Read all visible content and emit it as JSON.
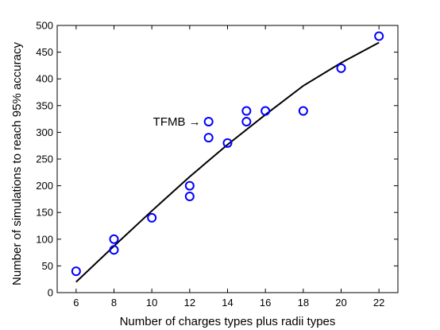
{
  "chart_data": {
    "type": "scatter",
    "xlabel": "Number of charges types plus radii types",
    "ylabel": "Number of simulations to reach 95% accuracy",
    "xlim": [
      5,
      23
    ],
    "ylim": [
      0,
      500
    ],
    "x_ticks": [
      6,
      8,
      10,
      12,
      14,
      16,
      18,
      20,
      22
    ],
    "y_ticks": [
      0,
      50,
      100,
      150,
      200,
      250,
      300,
      350,
      400,
      450,
      500
    ],
    "grid": false,
    "legend": "none",
    "series": [
      {
        "type": "scatter",
        "marker": "open-circle",
        "color": "#0000ff",
        "points": [
          {
            "x": 6,
            "y": 40
          },
          {
            "x": 8,
            "y": 100
          },
          {
            "x": 8,
            "y": 80
          },
          {
            "x": 10,
            "y": 140
          },
          {
            "x": 12,
            "y": 200
          },
          {
            "x": 12,
            "y": 180
          },
          {
            "x": 13,
            "y": 320
          },
          {
            "x": 13,
            "y": 290
          },
          {
            "x": 14,
            "y": 280
          },
          {
            "x": 15,
            "y": 340
          },
          {
            "x": 15,
            "y": 320
          },
          {
            "x": 16,
            "y": 340
          },
          {
            "x": 18,
            "y": 340
          },
          {
            "x": 20,
            "y": 420
          },
          {
            "x": 22,
            "y": 480
          }
        ]
      },
      {
        "type": "line",
        "color": "#000000",
        "x": [
          6,
          8,
          10,
          12,
          14,
          16,
          18,
          20,
          22
        ],
        "y": [
          20,
          87,
          153,
          217,
          277,
          333,
          387,
          430,
          468
        ]
      }
    ],
    "annotations": [
      {
        "text": "TFMB →",
        "x": 13,
        "y": 320
      }
    ]
  }
}
